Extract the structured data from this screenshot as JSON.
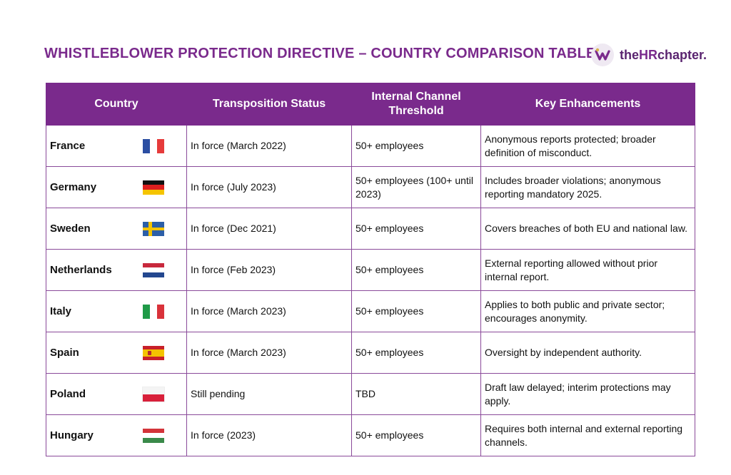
{
  "title": "WHISTLEBLOWER PROTECTION DIRECTIVE – COUNTRY COMPARISON TABLE",
  "logo": {
    "prefix": "the",
    "mid": "HR",
    "suffix": "chapter."
  },
  "headers": {
    "country": "Country",
    "status": "Transposition Status",
    "threshold": "Internal Channel Threshold",
    "enhancements": "Key Enhancements"
  },
  "rows": [
    {
      "country": "France",
      "status": "In force (March 2022)",
      "threshold": "50+ employees",
      "enhancements": "Anonymous reports protected; broader definition of misconduct."
    },
    {
      "country": "Germany",
      "status": "In force (July 2023)",
      "threshold": "50+ employees (100+ until 2023)",
      "enhancements": "Includes broader violations; anonymous reporting mandatory 2025."
    },
    {
      "country": "Sweden",
      "status": "In force (Dec 2021)",
      "threshold": "50+ employees",
      "enhancements": "Covers breaches of both EU and national law."
    },
    {
      "country": "Netherlands",
      "status": "In force (Feb 2023)",
      "threshold": "50+ employees",
      "enhancements": "External reporting allowed without prior internal report."
    },
    {
      "country": "Italy",
      "status": "In force (March 2023)",
      "threshold": "50+ employees",
      "enhancements": "Applies to both public and private sector; encourages anonymity."
    },
    {
      "country": "Spain",
      "status": "In force (March 2023)",
      "threshold": "50+ employees",
      "enhancements": "Oversight by independent authority."
    },
    {
      "country": "Poland",
      "status": "Still pending",
      "threshold": "TBD",
      "enhancements": "Draft law delayed; interim protections may apply."
    },
    {
      "country": "Hungary",
      "status": "In force (2023)",
      "threshold": "50+ employees",
      "enhancements": "Requires both internal and external reporting channels."
    }
  ],
  "colors": {
    "accent": "#7a2a8c"
  }
}
